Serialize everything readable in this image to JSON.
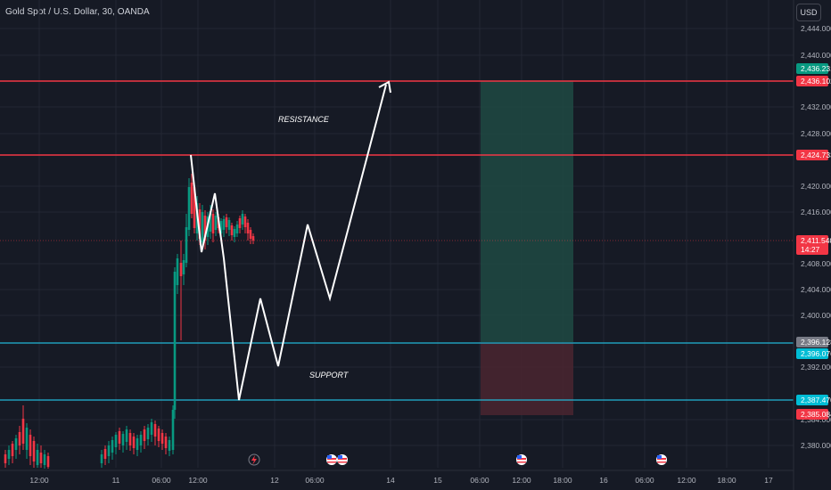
{
  "header": {
    "symbol_title": "Gold Spot / U.S. Dollar, 30, OANDA",
    "currency_button": "USD"
  },
  "price_axis": {
    "ticks": [
      "2,444.000",
      "2,440.000",
      "2,432.000",
      "2,428.000",
      "2,420.000",
      "2,416.000",
      "2,408.000",
      "2,404.000",
      "2,400.000",
      "2,392.000",
      "2,384.000",
      "2,380.000"
    ]
  },
  "price_tags": [
    {
      "label": "2,436.231",
      "color": "#089981"
    },
    {
      "label": "2,436.102",
      "color": "#f23645"
    },
    {
      "label": "2,424.733",
      "color": "#f23645"
    },
    {
      "label": "2,411.540",
      "sub": "14:27",
      "color": "#f23645"
    },
    {
      "label": "2,396.128",
      "color": "#787b86"
    },
    {
      "label": "2,396.076",
      "color": "#00bcd4"
    },
    {
      "label": "2,387.470",
      "color": "#00bcd4"
    },
    {
      "label": "2,385.084",
      "color": "#f23645"
    }
  ],
  "time_axis": {
    "labels": [
      "12:00",
      "11",
      "06:00",
      "12:00",
      "12",
      "06:00",
      "14",
      "15",
      "06:00",
      "12:00",
      "18:00",
      "16",
      "06:00",
      "12:00",
      "18:00",
      "17"
    ]
  },
  "annotations": {
    "resistance": "RESISTANCE",
    "support": "SUPPORT"
  },
  "colors": {
    "background": "#161a25",
    "resistance_line": "#f23645",
    "support_line": "#22b7d6",
    "up_candle": "#089981",
    "down_candle": "#f23645",
    "target_zone": "#1f4a43",
    "stop_zone": "#4a2630"
  },
  "event_icons": [
    "lightning-icon",
    "us-flag-icon",
    "us-flag-icon",
    "us-flag-icon",
    "us-flag-icon"
  ]
}
